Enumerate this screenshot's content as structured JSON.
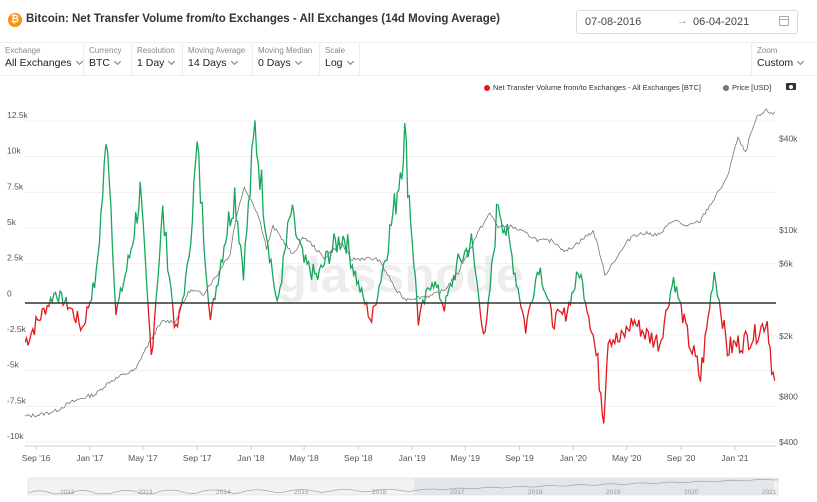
{
  "header": {
    "title": "Bitcoin: Net Transfer Volume from/to Exchanges - All Exchanges (14d Moving Average)"
  },
  "date_range": {
    "start": "07-08-2016",
    "end": "06-04-2021"
  },
  "controls": [
    {
      "label": "Exchange",
      "value": "All Exchanges"
    },
    {
      "label": "Currency",
      "value": "BTC"
    },
    {
      "label": "Resolution",
      "value": "1 Day"
    },
    {
      "label": "Moving Average",
      "value": "14 Days"
    },
    {
      "label": "Moving Median",
      "value": "0 Days"
    },
    {
      "label": "Scale",
      "value": "Log"
    }
  ],
  "zoom": {
    "label": "Zoom",
    "value": "Custom"
  },
  "legend": {
    "series1": "Net Transfer Volume from/to Exchanges - All Exchanges [BTC]",
    "series2": "Price [USD]"
  },
  "watermark": "glassnode",
  "colors": {
    "positive": "#16a75c",
    "negative": "#e0191c",
    "price": "#777777",
    "accent": "#f7931a"
  },
  "icons": {
    "coin": "bitcoin-icon",
    "calendar": "calendar-icon",
    "camera": "camera-icon"
  },
  "chart_data": {
    "type": "line",
    "x_tick_labels": [
      "Sep '16",
      "Jan '17",
      "May '17",
      "Sep '17",
      "Jan '18",
      "May '18",
      "Sep '18",
      "Jan '19",
      "May '19",
      "Sep '19",
      "Jan '20",
      "May '20",
      "Sep '20",
      "Jan '21"
    ],
    "y_left": {
      "ticks": [
        12500,
        10000,
        7500,
        5000,
        2500,
        0,
        -2500,
        -5000,
        -7500,
        -10000
      ],
      "labels": [
        "12.5k",
        "10k",
        "7.5k",
        "5k",
        "2.5k",
        "0",
        "-2.5k",
        "-5k",
        "-7.5k",
        "-10k"
      ],
      "range": [
        -10000,
        12500
      ]
    },
    "y_right": {
      "scale": "log",
      "ticks": [
        40000,
        10000,
        6000,
        2000,
        800,
        400
      ],
      "labels": [
        "$40k",
        "$10k",
        "$6k",
        "$2k",
        "$800",
        "$400"
      ],
      "range": [
        400,
        60000
      ]
    },
    "navigator_labels": [
      "2013",
      "2013",
      "2014",
      "2015",
      "2016",
      "2017",
      "2018",
      "2019",
      "2020",
      "2021"
    ],
    "series": [
      {
        "name": "Net Transfer Volume from/to Exchanges - All Exchanges [BTC]",
        "axis": "left",
        "x": [
          "2016-08-07",
          "2016-09-15",
          "2016-10-15",
          "2016-11-15",
          "2016-12-15",
          "2017-01-15",
          "2017-02-10",
          "2017-03-01",
          "2017-04-01",
          "2017-04-25",
          "2017-05-20",
          "2017-06-15",
          "2017-07-15",
          "2017-08-10",
          "2017-09-01",
          "2017-10-01",
          "2017-11-01",
          "2017-11-25",
          "2017-12-15",
          "2018-01-10",
          "2018-02-05",
          "2018-03-01",
          "2018-04-01",
          "2018-05-01",
          "2018-06-01",
          "2018-07-01",
          "2018-08-01",
          "2018-09-01",
          "2018-10-01",
          "2018-11-01",
          "2018-11-25",
          "2018-12-15",
          "2019-01-15",
          "2019-02-15",
          "2019-03-15",
          "2019-04-15",
          "2019-05-15",
          "2019-06-15",
          "2019-07-15",
          "2019-08-15",
          "2019-09-15",
          "2019-10-15",
          "2019-11-15",
          "2019-12-15",
          "2020-01-15",
          "2020-02-15",
          "2020-03-10",
          "2020-03-20",
          "2020-04-15",
          "2020-05-15",
          "2020-06-15",
          "2020-07-15",
          "2020-08-15",
          "2020-09-15",
          "2020-10-15",
          "2020-11-15",
          "2020-12-15",
          "2021-01-15",
          "2021-02-15",
          "2021-03-15",
          "2021-04-01"
        ],
        "values": [
          -3000,
          -1000,
          500,
          -500,
          -2000,
          1500,
          11800,
          -1000,
          3000,
          7500,
          -4000,
          6000,
          -2500,
          2000,
          10500,
          -1500,
          4000,
          7500,
          2000,
          12000,
          5000,
          -500,
          6000,
          2500,
          1500,
          3500,
          4500,
          1000,
          -1500,
          3000,
          7000,
          11500,
          -1500,
          1500,
          -500,
          2500,
          4000,
          -3000,
          7000,
          3000,
          -2000,
          2500,
          -1500,
          -1000,
          2000,
          -2500,
          -7700,
          -2500,
          -3000,
          -1500,
          -2500,
          -3000,
          1500,
          -2500,
          -5500,
          2000,
          -3500,
          -3000,
          -2500,
          -1500,
          -6200
        ]
      },
      {
        "name": "Price [USD]",
        "axis": "right",
        "x": [
          "2016-08-07",
          "2016-09-15",
          "2016-10-15",
          "2016-11-15",
          "2016-12-15",
          "2017-01-15",
          "2017-02-15",
          "2017-03-15",
          "2017-04-15",
          "2017-05-15",
          "2017-06-15",
          "2017-07-15",
          "2017-08-15",
          "2017-09-15",
          "2017-10-15",
          "2017-11-15",
          "2017-12-17",
          "2018-01-15",
          "2018-02-05",
          "2018-02-20",
          "2018-03-15",
          "2018-04-05",
          "2018-05-01",
          "2018-06-15",
          "2018-07-25",
          "2018-08-15",
          "2018-09-15",
          "2018-10-15",
          "2018-11-25",
          "2018-12-15",
          "2019-01-15",
          "2019-02-15",
          "2019-03-15",
          "2019-04-15",
          "2019-05-15",
          "2019-06-26",
          "2019-07-15",
          "2019-08-15",
          "2019-09-15",
          "2019-10-15",
          "2019-11-15",
          "2019-12-15",
          "2020-01-15",
          "2020-02-15",
          "2020-03-12",
          "2020-04-15",
          "2020-05-15",
          "2020-06-15",
          "2020-07-15",
          "2020-08-15",
          "2020-09-15",
          "2020-10-15",
          "2020-11-15",
          "2020-12-15",
          "2021-01-08",
          "2021-01-25",
          "2021-02-20",
          "2021-03-13",
          "2021-04-01"
        ],
        "values": [
          590,
          610,
          640,
          720,
          780,
          830,
          1000,
          1100,
          1200,
          1800,
          2500,
          2500,
          4000,
          3800,
          5000,
          7000,
          19000,
          13000,
          7500,
          10500,
          8500,
          6800,
          9000,
          6500,
          8200,
          6400,
          6500,
          6400,
          4000,
          3500,
          3600,
          3700,
          4000,
          5200,
          7800,
          12800,
          10500,
          10500,
          9500,
          8500,
          8500,
          7200,
          8400,
          9800,
          5000,
          7000,
          9300,
          9500,
          9300,
          11700,
          10500,
          11500,
          16000,
          22000,
          40000,
          32000,
          55000,
          61000,
          58500
        ]
      }
    ]
  }
}
